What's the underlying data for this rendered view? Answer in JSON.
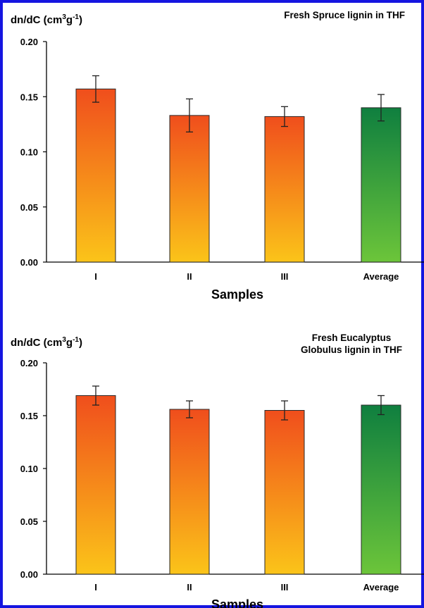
{
  "colors": {
    "frame": "#1515e0",
    "sample_bar_top": "#f04e1c",
    "sample_bar_bottom": "#fbc419",
    "average_bar_top": "#0f7f3f",
    "average_bar_bottom": "#6cc53a"
  },
  "chart_data": [
    {
      "type": "bar",
      "title": "Fresh Spruce lignin in THF",
      "ylabel_main": "dn/dC (cm",
      "ylabel_sup1": "3",
      "ylabel_mid": "g",
      "ylabel_sup2": "-1",
      "ylabel_end": ")",
      "xlabel": "Samples",
      "categories": [
        "I",
        "II",
        "III",
        "Average"
      ],
      "values": [
        0.157,
        0.133,
        0.132,
        0.14
      ],
      "errors": [
        0.012,
        0.015,
        0.009,
        0.012
      ],
      "ylim": [
        0,
        0.2
      ],
      "yticks": [
        "0.00",
        "0.05",
        "0.10",
        "0.15",
        "0.20"
      ]
    },
    {
      "type": "bar",
      "title_lines": [
        "Fresh Eucalyptus",
        "Globulus lignin in THF"
      ],
      "ylabel_main": "dn/dC (cm",
      "ylabel_sup1": "3",
      "ylabel_mid": "g",
      "ylabel_sup2": "-1",
      "ylabel_end": ")",
      "xlabel": "Samples",
      "categories": [
        "I",
        "II",
        "III",
        "Average"
      ],
      "values": [
        0.169,
        0.156,
        0.155,
        0.16
      ],
      "errors": [
        0.009,
        0.008,
        0.009,
        0.009
      ],
      "ylim": [
        0,
        0.2
      ],
      "yticks": [
        "0.00",
        "0.05",
        "0.10",
        "0.15",
        "0.20"
      ]
    }
  ]
}
